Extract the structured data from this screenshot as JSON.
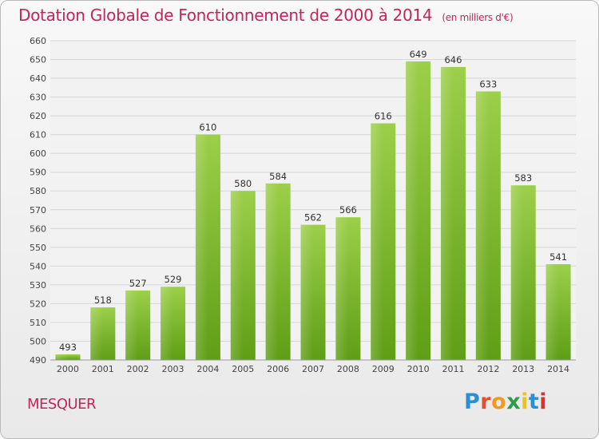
{
  "header": {
    "title": "Dotation Globale de Fonctionnement de 2000 à 2014",
    "subtitle": "(en milliers d'€)"
  },
  "footer": {
    "commune": "MESQUER",
    "logo_text": "Proxiti",
    "logo_colors": [
      "#2b8fd6",
      "#e94e2a",
      "#f29a1f",
      "#2f9b4a",
      "#e8c227",
      "#2b8fd6",
      "#d6342e"
    ]
  },
  "colors": {
    "bar_top": "#9ccf4a",
    "bar_bottom": "#5f9e16",
    "text_accent": "#c2255c"
  },
  "chart_data": {
    "type": "bar",
    "categories": [
      "2000",
      "2001",
      "2002",
      "2003",
      "2004",
      "2005",
      "2006",
      "2007",
      "2008",
      "2009",
      "2010",
      "2011",
      "2012",
      "2013",
      "2014"
    ],
    "values": [
      493,
      518,
      527,
      529,
      610,
      580,
      584,
      562,
      566,
      616,
      649,
      646,
      633,
      583,
      541
    ],
    "title": "Dotation Globale de Fonctionnement de 2000 à 2014",
    "subtitle": "(en milliers d'€)",
    "ylim": [
      490,
      660
    ],
    "yticks": [
      490,
      500,
      510,
      520,
      530,
      540,
      550,
      560,
      570,
      580,
      590,
      600,
      610,
      620,
      630,
      640,
      650,
      660
    ],
    "grid": true,
    "data_labels": true
  }
}
